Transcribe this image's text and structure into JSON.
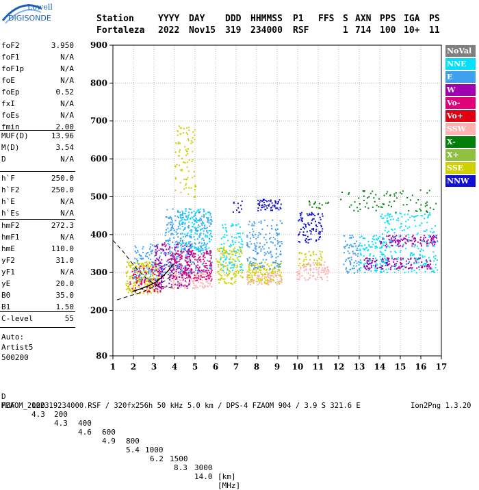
{
  "logo": {
    "line1": "Lowell",
    "line2": "DIGISONDE"
  },
  "header": {
    "labels": [
      "Station",
      "YYYY",
      "DAY",
      "DDD",
      "HHMMSS",
      "P1",
      "FFS",
      "S",
      "AXN",
      "PPS",
      "IGA",
      "PS"
    ],
    "values": [
      "Fortaleza",
      "2022",
      "Nov15",
      "319",
      "234000",
      "RSF",
      "1",
      "714",
      "100",
      "10+",
      "11"
    ]
  },
  "params": {
    "g1": [
      [
        "foF2",
        "3.950"
      ],
      [
        "foF1",
        "N/A"
      ],
      [
        "foF1p",
        "N/A"
      ],
      [
        "foE",
        "N/A"
      ],
      [
        "foEp",
        "0.52"
      ],
      [
        "fxI",
        "N/A"
      ],
      [
        "foEs",
        "N/A"
      ],
      [
        "fmin",
        "2.00"
      ]
    ],
    "g2": [
      [
        "MUF(D)",
        "13.96"
      ],
      [
        "M(D)",
        "3.54"
      ],
      [
        "D",
        "N/A"
      ]
    ],
    "g3": [
      [
        "h`F",
        "250.0"
      ],
      [
        "h`F2",
        "250.0"
      ],
      [
        "h`E",
        "N/A"
      ],
      [
        "h`Es",
        "N/A"
      ]
    ],
    "g4": [
      [
        "hmF2",
        "272.3"
      ],
      [
        "hmF1",
        "N/A"
      ],
      [
        "hmE",
        "110.0"
      ],
      [
        "yF2",
        "31.0"
      ],
      [
        "yF1",
        "N/A"
      ],
      [
        "yE",
        "20.0"
      ],
      [
        "B0",
        "35.0"
      ],
      [
        "B1",
        "1.50"
      ]
    ],
    "g5": [
      [
        "C-level",
        "55"
      ]
    ],
    "auto": [
      "Auto:",
      "Artist5",
      "500200"
    ]
  },
  "legend": [
    {
      "label": "NoVal",
      "color": "#808080"
    },
    {
      "label": "NNE",
      "color": "#00e0ff"
    },
    {
      "label": "E",
      "color": "#40a0f0"
    },
    {
      "label": "W",
      "color": "#a000b0"
    },
    {
      "label": "Vo-",
      "color": "#e0007a"
    },
    {
      "label": "Vo+",
      "color": "#e00010"
    },
    {
      "label": "SSW",
      "color": "#ffb0b0"
    },
    {
      "label": "X-",
      "color": "#00800a"
    },
    {
      "label": "X+",
      "color": "#90c040"
    },
    {
      "label": "SSE",
      "color": "#d0d000"
    },
    {
      "label": "NNW",
      "color": "#1010d0"
    }
  ],
  "chart_data": {
    "type": "scatter",
    "xlim": [
      1,
      17
    ],
    "ylim": [
      80,
      900
    ],
    "x_ticks": [
      1,
      2,
      3,
      4,
      5,
      6,
      7,
      8,
      9,
      10,
      11,
      12,
      13,
      14,
      15,
      16,
      17
    ],
    "y_ticks": [
      80,
      200,
      300,
      400,
      500,
      600,
      700,
      800,
      900
    ],
    "grid": true,
    "clusters": [
      {
        "x": [
          1.6,
          3.2
        ],
        "y": [
          245,
          330
        ],
        "series": "SSE",
        "density": 0.9
      },
      {
        "x": [
          1.8,
          3.4
        ],
        "y": [
          250,
          320
        ],
        "series": "Vo-",
        "density": 0.5
      },
      {
        "x": [
          2.0,
          3.5
        ],
        "y": [
          280,
          380
        ],
        "series": "E",
        "density": 0.4
      },
      {
        "x": [
          3.0,
          4.8
        ],
        "y": [
          260,
          380
        ],
        "series": "W",
        "density": 0.6
      },
      {
        "x": [
          3.5,
          5.8
        ],
        "y": [
          300,
          470
        ],
        "series": "E",
        "density": 0.5
      },
      {
        "x": [
          3.8,
          5.8
        ],
        "y": [
          260,
          300
        ],
        "series": "SSW",
        "density": 0.8
      },
      {
        "x": [
          3.8,
          5.8
        ],
        "y": [
          280,
          360
        ],
        "series": "Vo-",
        "density": 0.6
      },
      {
        "x": [
          4.0,
          5.0
        ],
        "y": [
          500,
          690
        ],
        "series": "SSE",
        "density": 0.25
      },
      {
        "x": [
          4.2,
          5.8
        ],
        "y": [
          360,
          470
        ],
        "series": "NNE",
        "density": 0.35
      },
      {
        "x": [
          6.0,
          7.3
        ],
        "y": [
          270,
          370
        ],
        "series": "SSE",
        "density": 0.6
      },
      {
        "x": [
          6.2,
          7.3
        ],
        "y": [
          300,
          430
        ],
        "series": "NNE",
        "density": 0.35
      },
      {
        "x": [
          6.8,
          7.3
        ],
        "y": [
          460,
          490
        ],
        "series": "NNW",
        "density": 0.4
      },
      {
        "x": [
          7.5,
          9.2
        ],
        "y": [
          270,
          330
        ],
        "series": "SSE",
        "density": 0.8
      },
      {
        "x": [
          7.5,
          9.2
        ],
        "y": [
          270,
          300
        ],
        "series": "SSW",
        "density": 0.7
      },
      {
        "x": [
          7.5,
          9.2
        ],
        "y": [
          310,
          440
        ],
        "series": "E",
        "density": 0.4
      },
      {
        "x": [
          8.0,
          9.2
        ],
        "y": [
          465,
          495
        ],
        "series": "NNW",
        "density": 0.9
      },
      {
        "x": [
          9.9,
          11.5
        ],
        "y": [
          280,
          330
        ],
        "series": "SSW",
        "density": 0.6
      },
      {
        "x": [
          10.0,
          11.2
        ],
        "y": [
          320,
          360
        ],
        "series": "SSE",
        "density": 0.5
      },
      {
        "x": [
          10.0,
          11.2
        ],
        "y": [
          380,
          460
        ],
        "series": "NNW",
        "density": 0.5
      },
      {
        "x": [
          10.5,
          11.5
        ],
        "y": [
          470,
          490
        ],
        "series": "X-",
        "density": 0.4
      },
      {
        "x": [
          12.2,
          13.0
        ],
        "y": [
          300,
          400
        ],
        "series": "E",
        "density": 0.5
      },
      {
        "x": [
          13.0,
          14.3
        ],
        "y": [
          300,
          400
        ],
        "series": "NNE",
        "density": 0.5
      },
      {
        "x": [
          13.2,
          16.5
        ],
        "y": [
          310,
          340
        ],
        "series": "W",
        "density": 0.8
      },
      {
        "x": [
          14.0,
          16.8
        ],
        "y": [
          370,
          400
        ],
        "series": "W",
        "density": 0.8
      },
      {
        "x": [
          14.0,
          16.8
        ],
        "y": [
          300,
          460
        ],
        "series": "NNE",
        "density": 0.25
      },
      {
        "x": [
          12.0,
          16.8
        ],
        "y": [
          460,
          520
        ],
        "series": "X-",
        "density": 0.15
      }
    ],
    "trace": {
      "x": [
        1.95,
        2.3,
        2.7,
        3.1,
        3.4,
        3.7,
        3.95
      ],
      "y": [
        250,
        256,
        264,
        275,
        288,
        305,
        322
      ]
    },
    "envelopes": [
      {
        "x": [
          1.0,
          1.5,
          2.0,
          2.5,
          3.0,
          3.5,
          4.0
        ],
        "y": [
          385,
          355,
          320,
          290,
          270,
          262,
          258
        ]
      },
      {
        "x": [
          1.2,
          1.8,
          2.4,
          3.0,
          3.6,
          4.0
        ],
        "y": [
          228,
          238,
          248,
          262,
          280,
          300
        ]
      }
    ]
  },
  "footer": {
    "d_row": [
      "D",
      "100",
      "200",
      "400",
      "600",
      "800",
      "1000",
      "1500",
      "3000",
      "[km]"
    ],
    "muf_row": [
      "MUF",
      "4.3",
      "4.3",
      "4.6",
      "4.9",
      "5.4",
      "6.2",
      "8.3",
      "14.0",
      "[MHz]"
    ],
    "fileline": "FZAOM_2022319234000.RSF / 320fx256h 50 kHz 5.0 km / DPS-4 FZAOM 904 / 3.9 S 321.6 E",
    "version": "Ion2Png 1.3.20"
  }
}
